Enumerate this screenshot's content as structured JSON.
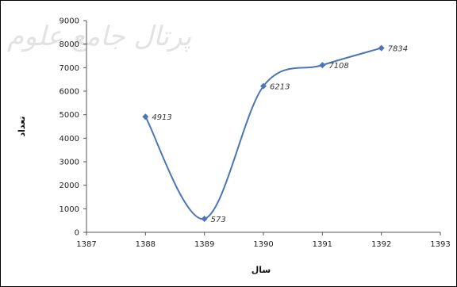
{
  "watermark": {
    "line1": "پرتال جامع علوم"
  },
  "chart_data": {
    "type": "scatter",
    "smooth": true,
    "markers": "diamond",
    "line_color": "#4a76b8",
    "marker_color": "#4a76b8",
    "x": [
      1388,
      1389,
      1390,
      1391,
      1392
    ],
    "y": [
      4913,
      573,
      6213,
      7108,
      7834
    ],
    "data_labels": [
      "4913",
      "573",
      "6213",
      "7108",
      "7834"
    ],
    "xlim": [
      1387,
      1393
    ],
    "ylim": [
      0,
      9000
    ],
    "xticks": [
      1387,
      1388,
      1389,
      1390,
      1391,
      1392,
      1393
    ],
    "yticks": [
      0,
      1000,
      2000,
      3000,
      4000,
      5000,
      6000,
      7000,
      8000,
      9000
    ],
    "xlabel": "سال",
    "ylabel": "تعداد",
    "grid": false,
    "legend": "none"
  }
}
